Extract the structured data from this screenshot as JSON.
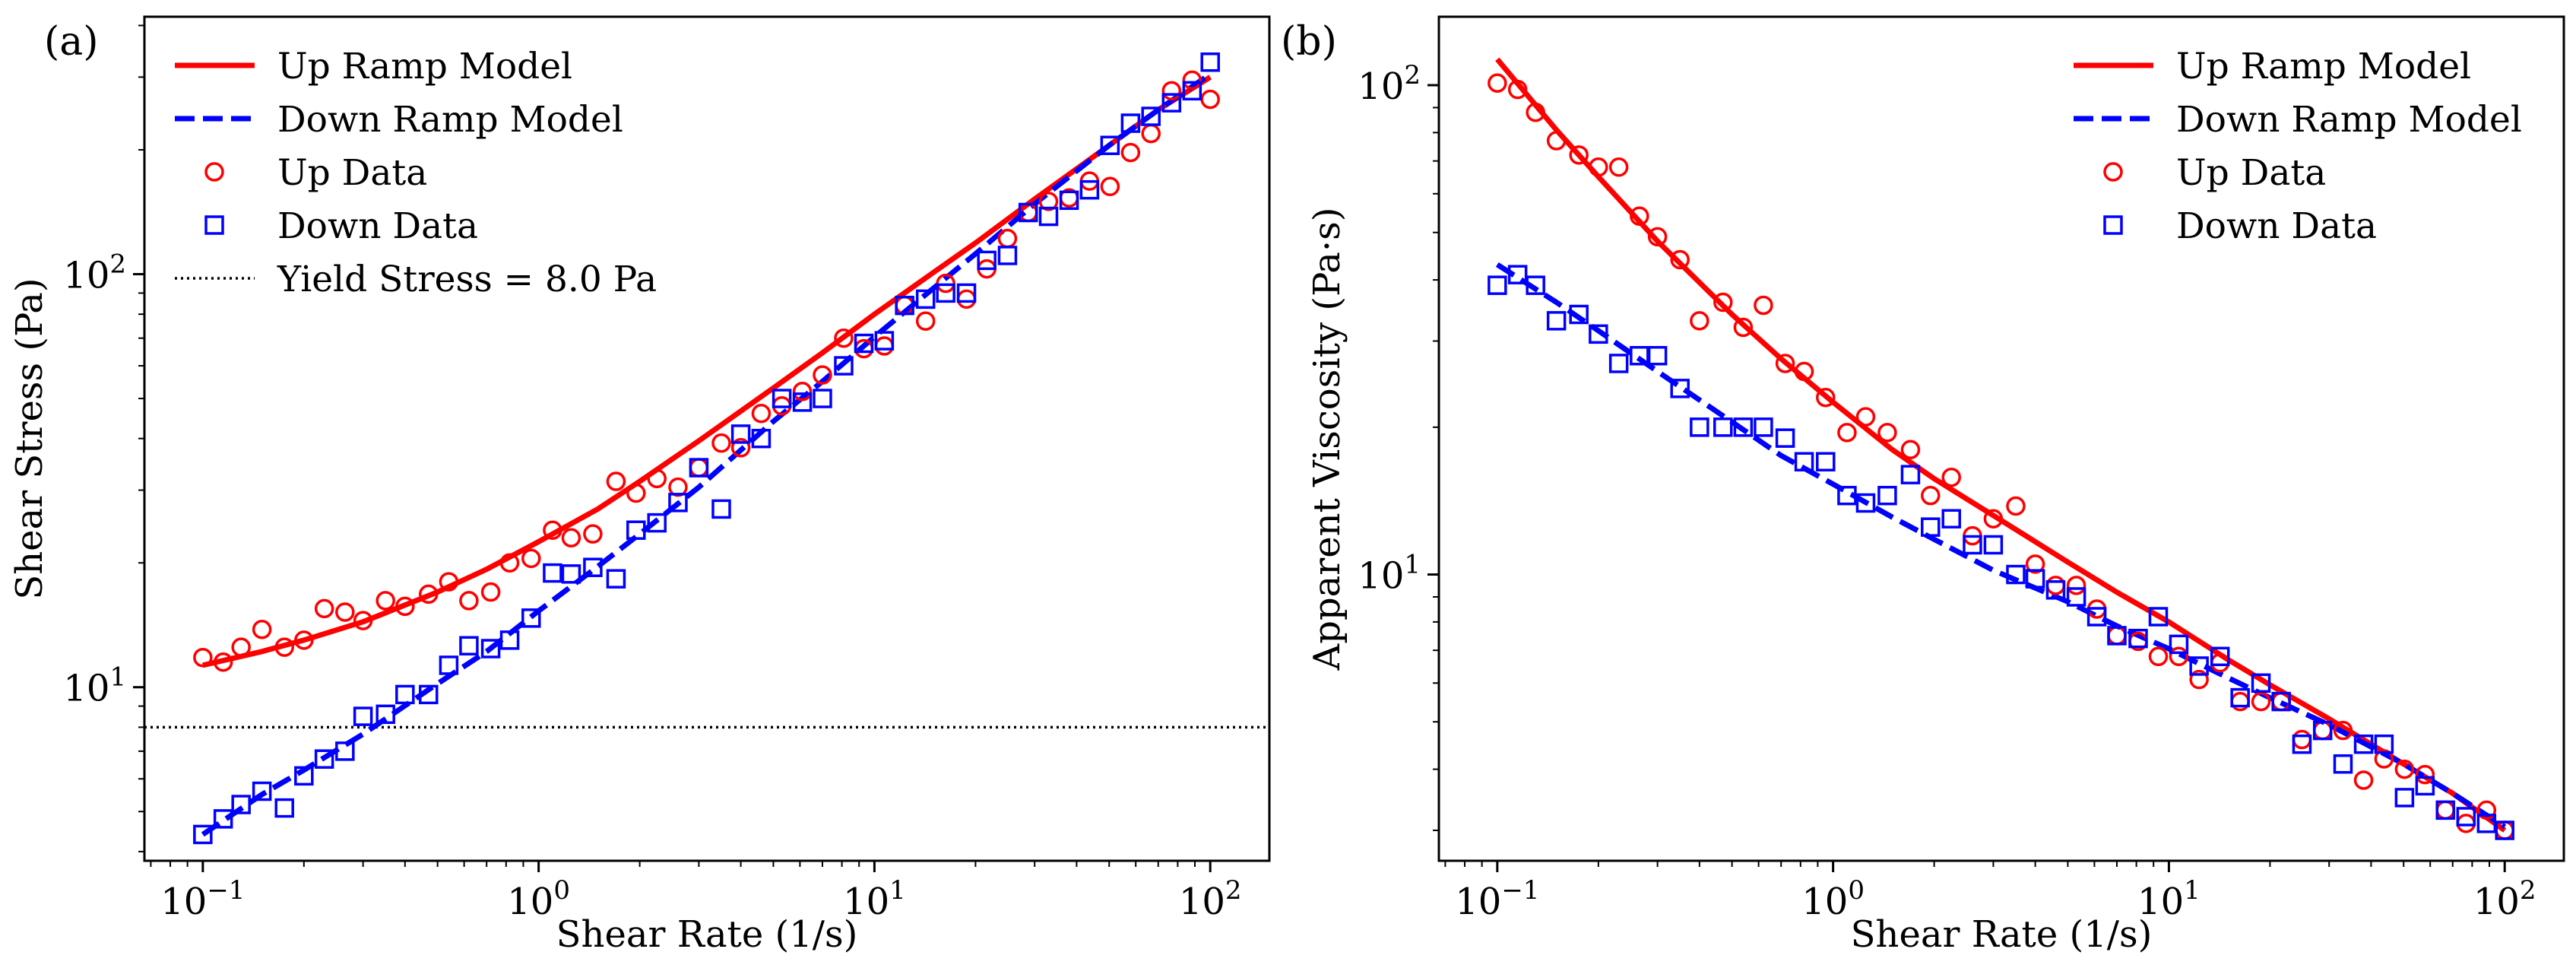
{
  "chart_data": [
    {
      "panel_label": "(a)",
      "type": "scatter",
      "x_scale": "log",
      "y_scale": "log",
      "xlabel": "Shear Rate (1/s)",
      "ylabel": "Shear Stress (Pa)",
      "xlim": [
        0.067,
        150
      ],
      "ylim": [
        3.8,
        420
      ],
      "x_ticks": [
        {
          "value": 0.1,
          "base": "10",
          "exp": "−1"
        },
        {
          "value": 1,
          "base": "10",
          "exp": "0"
        },
        {
          "value": 10,
          "base": "10",
          "exp": "1"
        },
        {
          "value": 100,
          "base": "10",
          "exp": "2"
        }
      ],
      "y_ticks": [
        {
          "value": 10,
          "base": "10",
          "exp": "1"
        },
        {
          "value": 100,
          "base": "10",
          "exp": "2"
        }
      ],
      "legend_position": "top-left",
      "legend": [
        {
          "series": "up_model",
          "label": "Up Ramp Model"
        },
        {
          "series": "down_model",
          "label": "Down Ramp Model"
        },
        {
          "series": "up_data",
          "label": "Up Data"
        },
        {
          "series": "down_data",
          "label": "Down Data"
        },
        {
          "series": "yield",
          "label": "Yield Stress = 8.0 Pa"
        }
      ],
      "hline": {
        "name": "yield-stress-line",
        "y": 8.0,
        "color": "#000000",
        "style": "dotted"
      },
      "series": [
        {
          "name": "Up Ramp Model",
          "key": "up_model",
          "kind": "line",
          "style": "solid",
          "color": "#ff0000",
          "x": [
            0.1,
            0.15,
            0.2,
            0.3,
            0.5,
            0.7,
            1,
            1.5,
            2,
            3,
            5,
            7,
            10,
            15,
            20,
            30,
            50,
            70,
            100
          ],
          "y": [
            11.3,
            12.2,
            13.0,
            14.4,
            17.0,
            19.3,
            22.5,
            27.0,
            31.5,
            39.5,
            53.0,
            64.5,
            80.0,
            101,
            119,
            152,
            205,
            250,
            300
          ]
        },
        {
          "name": "Down Ramp Model",
          "key": "down_model",
          "kind": "line",
          "style": "dashed",
          "color": "#0000ff",
          "x": [
            0.1,
            0.15,
            0.2,
            0.3,
            0.5,
            0.7,
            1,
            1.5,
            2,
            3,
            5,
            7,
            10,
            15,
            20,
            30,
            50,
            70,
            100
          ],
          "y": [
            4.4,
            5.5,
            6.3,
            7.7,
            10.2,
            12.2,
            15.3,
            19.6,
            23.5,
            30.5,
            44.0,
            55.0,
            70.5,
            92.5,
            112,
            148,
            205,
            250,
            305
          ]
        },
        {
          "name": "Up Data",
          "key": "up_data",
          "kind": "markers",
          "marker": "circle",
          "color": "#ff0000",
          "x": [
            0.1,
            0.115,
            0.13,
            0.15,
            0.175,
            0.2,
            0.23,
            0.265,
            0.3,
            0.35,
            0.4,
            0.47,
            0.54,
            0.62,
            0.72,
            0.82,
            0.95,
            1.1,
            1.25,
            1.45,
            1.7,
            1.95,
            2.25,
            2.6,
            3.0,
            3.5,
            4.0,
            4.6,
            5.3,
            6.1,
            7.0,
            8.1,
            9.3,
            10.7,
            12.3,
            14.2,
            16.3,
            18.8,
            21.6,
            24.9,
            28.7,
            33.0,
            38.0,
            43.7,
            50.3,
            57.9,
            66.6,
            76.7,
            88.3,
            100
          ],
          "y": [
            11.8,
            11.5,
            12.5,
            13.8,
            12.5,
            13.0,
            15.5,
            15.2,
            14.5,
            16.2,
            15.7,
            16.8,
            18.0,
            16.2,
            17.0,
            20.0,
            20.5,
            24.0,
            23.0,
            23.5,
            31.5,
            29.5,
            32.0,
            30.5,
            34.0,
            39.0,
            38.0,
            46.0,
            48.0,
            52.0,
            57.0,
            70.0,
            66.0,
            67.0,
            84.0,
            77.0,
            95.0,
            87.0,
            103,
            122,
            141,
            150,
            153,
            168,
            163,
            197,
            219,
            278,
            295,
            265
          ]
        },
        {
          "name": "Down Data",
          "key": "down_data",
          "kind": "markers",
          "marker": "square",
          "color": "#0000ff",
          "x": [
            0.1,
            0.115,
            0.13,
            0.15,
            0.175,
            0.2,
            0.23,
            0.265,
            0.3,
            0.35,
            0.4,
            0.47,
            0.54,
            0.62,
            0.72,
            0.82,
            0.95,
            1.1,
            1.25,
            1.45,
            1.7,
            1.95,
            2.25,
            2.6,
            3.0,
            3.5,
            4.0,
            4.6,
            5.3,
            6.1,
            7.0,
            8.1,
            9.3,
            10.7,
            12.3,
            14.2,
            16.3,
            18.8,
            21.6,
            24.9,
            28.7,
            33.0,
            38.0,
            43.7,
            50.3,
            57.9,
            66.6,
            76.7,
            88.3,
            100
          ],
          "y": [
            4.4,
            4.8,
            5.2,
            5.6,
            5.1,
            6.1,
            6.7,
            7.0,
            8.5,
            8.6,
            9.6,
            9.6,
            11.3,
            12.6,
            12.4,
            13.0,
            14.7,
            18.9,
            18.8,
            19.5,
            18.3,
            24.0,
            25.0,
            28.0,
            34.0,
            27.0,
            41.0,
            40.0,
            50.0,
            49.0,
            50.0,
            60.0,
            68.0,
            69.0,
            84.0,
            87.0,
            90.0,
            90.0,
            108,
            111,
            141,
            138,
            151,
            160,
            205,
            232,
            241,
            260,
            278,
            326
          ]
        }
      ]
    },
    {
      "panel_label": "(b)",
      "type": "scatter",
      "x_scale": "log",
      "y_scale": "log",
      "xlabel": "Shear Rate (1/s)",
      "ylabel": "Apparent Viscosity (Pa·s)",
      "xlim": [
        0.067,
        150
      ],
      "ylim": [
        2.6,
        138
      ],
      "x_ticks": [
        {
          "value": 0.1,
          "base": "10",
          "exp": "−1"
        },
        {
          "value": 1,
          "base": "10",
          "exp": "0"
        },
        {
          "value": 10,
          "base": "10",
          "exp": "1"
        },
        {
          "value": 100,
          "base": "10",
          "exp": "2"
        }
      ],
      "y_ticks": [
        {
          "value": 10,
          "base": "10",
          "exp": "1"
        },
        {
          "value": 100,
          "base": "10",
          "exp": "2"
        }
      ],
      "legend_position": "top-right",
      "legend": [
        {
          "series": "up_model",
          "label": "Up Ramp Model"
        },
        {
          "series": "down_model",
          "label": "Down Ramp Model"
        },
        {
          "series": "up_data",
          "label": "Up Data"
        },
        {
          "series": "down_data",
          "label": "Down Data"
        }
      ],
      "series": [
        {
          "name": "Up Ramp Model",
          "key": "up_model",
          "kind": "line",
          "style": "solid",
          "color": "#ff0000",
          "x": [
            0.1,
            0.15,
            0.2,
            0.3,
            0.5,
            0.7,
            1,
            1.5,
            2,
            3,
            5,
            7,
            10,
            15,
            20,
            30,
            50,
            70,
            100
          ],
          "y": [
            113,
            81.0,
            65.0,
            48.0,
            34.0,
            27.6,
            22.5,
            18.0,
            15.7,
            13.2,
            10.6,
            9.2,
            8.0,
            6.7,
            5.95,
            5.07,
            4.1,
            3.57,
            3.0
          ]
        },
        {
          "name": "Down Ramp Model",
          "key": "down_model",
          "kind": "line",
          "style": "dashed",
          "color": "#0000ff",
          "x": [
            0.1,
            0.15,
            0.2,
            0.3,
            0.5,
            0.7,
            1,
            1.5,
            2,
            3,
            5,
            7,
            10,
            15,
            20,
            30,
            50,
            70,
            100
          ],
          "y": [
            43.0,
            36.0,
            31.5,
            26.0,
            20.5,
            17.5,
            15.3,
            13.1,
            11.8,
            10.2,
            8.8,
            7.85,
            7.05,
            6.15,
            5.6,
            4.93,
            4.1,
            3.57,
            3.05
          ]
        },
        {
          "name": "Up Data",
          "key": "up_data",
          "kind": "markers",
          "marker": "circle",
          "color": "#ff0000",
          "x": [
            0.1,
            0.115,
            0.13,
            0.15,
            0.175,
            0.2,
            0.23,
            0.265,
            0.3,
            0.35,
            0.4,
            0.47,
            0.54,
            0.62,
            0.72,
            0.82,
            0.95,
            1.1,
            1.25,
            1.45,
            1.7,
            1.95,
            2.25,
            2.6,
            3.0,
            3.5,
            4.0,
            4.6,
            5.3,
            6.1,
            7.0,
            8.1,
            9.3,
            10.7,
            12.3,
            14.2,
            16.3,
            18.8,
            21.6,
            24.9,
            28.7,
            33.0,
            38.0,
            43.7,
            50.3,
            57.9,
            66.6,
            76.7,
            88.3,
            100
          ],
          "y": [
            101,
            98.0,
            88.0,
            77.0,
            72.0,
            68.0,
            68.0,
            54.0,
            49.0,
            44.0,
            33.0,
            36.0,
            32.0,
            35.5,
            27.0,
            26.0,
            23.0,
            19.5,
            21.0,
            19.5,
            18.0,
            14.5,
            15.8,
            12.0,
            13.0,
            13.8,
            10.5,
            9.5,
            9.5,
            8.5,
            7.5,
            7.3,
            6.8,
            6.8,
            6.1,
            6.6,
            5.5,
            5.5,
            5.5,
            4.6,
            4.8,
            4.8,
            3.8,
            4.2,
            4.0,
            3.9,
            3.3,
            3.1,
            3.3,
            3.0
          ]
        },
        {
          "name": "Down Data",
          "key": "down_data",
          "kind": "markers",
          "marker": "square",
          "color": "#0000ff",
          "x": [
            0.1,
            0.115,
            0.13,
            0.15,
            0.175,
            0.2,
            0.23,
            0.265,
            0.3,
            0.35,
            0.4,
            0.47,
            0.54,
            0.62,
            0.72,
            0.82,
            0.95,
            1.1,
            1.25,
            1.45,
            1.7,
            1.95,
            2.25,
            2.6,
            3.0,
            3.5,
            4.0,
            4.6,
            5.3,
            6.1,
            7.0,
            8.1,
            9.3,
            10.7,
            12.3,
            14.2,
            16.3,
            18.8,
            21.6,
            24.9,
            28.7,
            33.0,
            38.0,
            43.7,
            50.3,
            57.9,
            66.6,
            76.7,
            88.3,
            100
          ],
          "y": [
            39.0,
            41.0,
            39.0,
            33.0,
            34.0,
            31.0,
            27.0,
            28.0,
            28.0,
            24.0,
            20.0,
            20.0,
            20.0,
            20.0,
            19.0,
            17.0,
            17.0,
            14.5,
            14.0,
            14.5,
            16.0,
            12.5,
            13.0,
            11.5,
            11.5,
            10.0,
            9.8,
            9.3,
            9.0,
            8.2,
            7.5,
            7.4,
            8.2,
            7.2,
            6.5,
            6.8,
            5.6,
            6.0,
            5.5,
            4.5,
            4.8,
            4.1,
            4.5,
            4.5,
            3.5,
            3.7,
            3.3,
            3.2,
            3.1,
            3.0
          ]
        }
      ]
    }
  ]
}
